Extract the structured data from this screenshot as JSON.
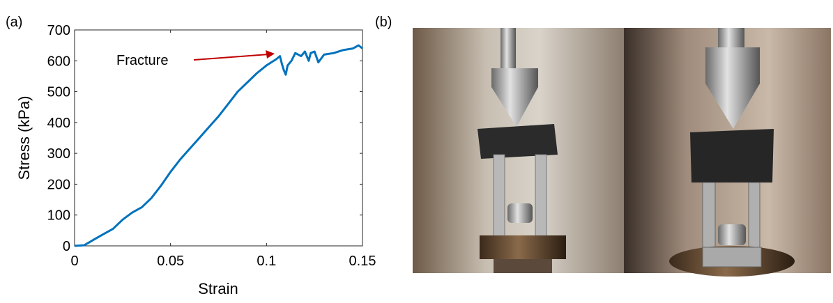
{
  "panel_a_label": "(a)",
  "panel_b_label": "(b)",
  "chart_data": {
    "type": "line",
    "annotation": "Fracture",
    "xlabel": "Strain",
    "ylabel": "Stress (kPa)",
    "x": [
      0,
      0.005,
      0.01,
      0.015,
      0.02,
      0.025,
      0.03,
      0.035,
      0.04,
      0.045,
      0.05,
      0.055,
      0.06,
      0.065,
      0.07,
      0.075,
      0.08,
      0.085,
      0.09,
      0.095,
      0.1,
      0.105,
      0.107,
      0.108,
      0.109,
      0.11,
      0.111,
      0.113,
      0.115,
      0.118,
      0.12,
      0.122,
      0.123,
      0.125,
      0.127,
      0.13,
      0.135,
      0.14,
      0.145,
      0.148,
      0.15
    ],
    "series": [
      {
        "color": "#0072bd",
        "values": [
          0,
          2,
          20,
          38,
          55,
          85,
          108,
          125,
          155,
          195,
          240,
          280,
          315,
          350,
          385,
          420,
          460,
          500,
          530,
          560,
          585,
          605,
          615,
          590,
          570,
          555,
          585,
          600,
          625,
          615,
          630,
          600,
          625,
          630,
          595,
          620,
          625,
          635,
          640,
          650,
          640
        ]
      }
    ],
    "xlim": [
      0,
      0.15
    ],
    "xticks": [
      0,
      0.05,
      0.1,
      0.15
    ],
    "ylim": [
      0,
      700
    ],
    "yticks": [
      0,
      100,
      200,
      300,
      400,
      500,
      600,
      700
    ]
  }
}
